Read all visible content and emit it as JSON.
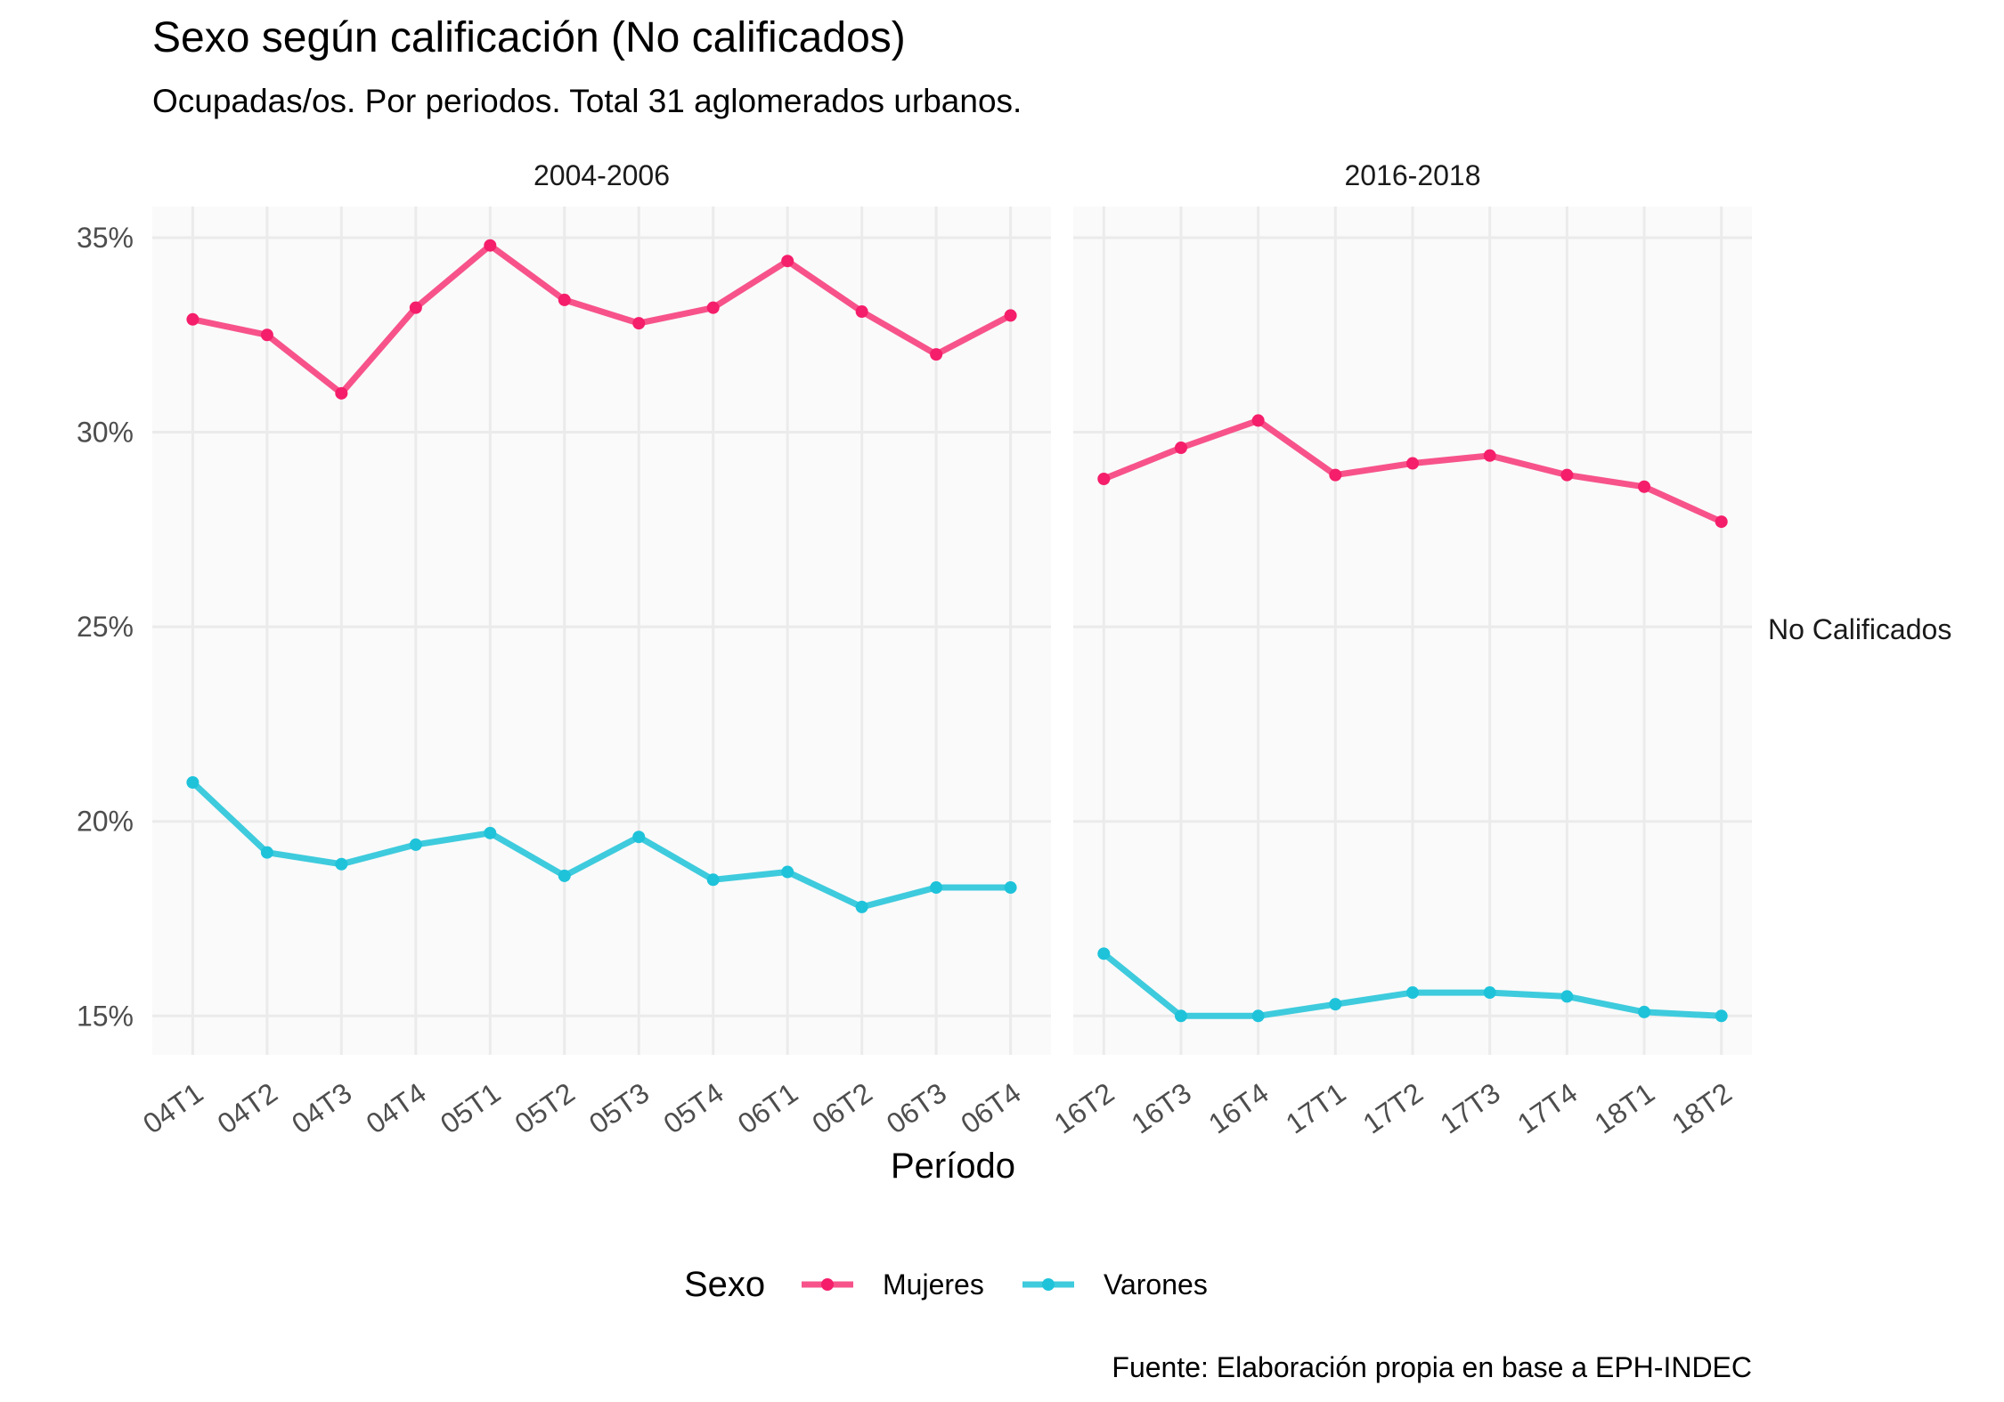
{
  "chart_data": {
    "type": "line",
    "title": "Sexo según calificación (No calificados)",
    "subtitle": "Ocupadas/os. Por periodos. Total 31 aglomerados urbanos.",
    "xlabel": "Período",
    "ylabel": "",
    "ylim": [
      14,
      35.8
    ],
    "y_ticks": [
      15,
      20,
      25,
      30,
      35
    ],
    "y_tick_format": "percent",
    "row_label": "No Calificados",
    "caption": "Fuente: Elaboración propia en base a EPH-INDEC",
    "grid": true,
    "legend": {
      "title": "Sexo",
      "position": "bottom"
    },
    "panels": [
      {
        "label": "2004-2006",
        "categories": [
          "04T1",
          "04T2",
          "04T3",
          "04T4",
          "05T1",
          "05T2",
          "05T3",
          "05T4",
          "06T1",
          "06T2",
          "06T3",
          "06T4"
        ],
        "series": [
          {
            "name": "Mujeres",
            "values": [
              32.9,
              32.5,
              31.0,
              33.2,
              34.8,
              33.4,
              32.8,
              33.2,
              34.4,
              33.1,
              32.0,
              33.0
            ]
          },
          {
            "name": "Varones",
            "values": [
              21.0,
              19.2,
              18.9,
              19.4,
              19.7,
              18.6,
              19.6,
              18.5,
              18.7,
              17.8,
              18.3,
              18.3
            ]
          }
        ]
      },
      {
        "label": "2016-2018",
        "categories": [
          "16T2",
          "16T3",
          "16T4",
          "17T1",
          "17T2",
          "17T3",
          "17T4",
          "18T1",
          "18T2"
        ],
        "series": [
          {
            "name": "Mujeres",
            "values": [
              28.8,
              29.6,
              30.3,
              28.9,
              29.2,
              29.4,
              28.9,
              28.6,
              27.7
            ]
          },
          {
            "name": "Varones",
            "values": [
              16.6,
              15.0,
              15.0,
              15.3,
              15.6,
              15.6,
              15.5,
              15.1,
              15.0
            ]
          }
        ]
      }
    ],
    "colors": {
      "Mujeres": "#f7538a",
      "Varones": "#3ecbdd"
    },
    "point_colors": {
      "Mujeres": "#f51e6a",
      "Varones": "#1ec3da"
    },
    "panel_background": "#fafafa",
    "grid_color": "#ebebeb"
  }
}
